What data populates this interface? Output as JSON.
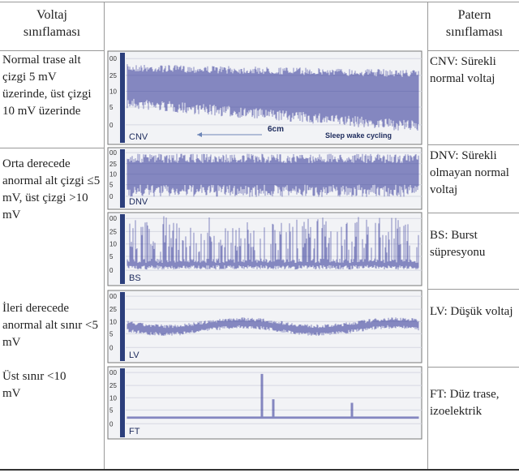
{
  "header": {
    "left": "Voltaj sınıflaması",
    "right": "Patern sınıflaması"
  },
  "voltage_classes": [
    "Normal trase alt çizgi 5 mV üzerinde, üst çizgi 10 mV üzerinde",
    "Orta derecede anormal alt çizgi ≤5 mV, üst çizgi >10 mV",
    "İleri derecede anormal alt sınır <5 mV",
    "Üst sınır <10 mV"
  ],
  "axis_ticks": [
    "00",
    "25",
    "10",
    "5",
    "0"
  ],
  "panels": [
    {
      "label": "CNV",
      "annotations": [
        "6cm",
        "Sleep wake cycling"
      ]
    },
    {
      "label": "DNV"
    },
    {
      "label": "BS"
    },
    {
      "label": "LV"
    },
    {
      "label": "FT"
    }
  ],
  "pattern_classes": [
    "CNV: Sürekli normal voltaj",
    "DNV: Sürekli olmayan normal voltaj",
    "BS: Burst süpresyonu",
    "LV: Düşük voltaj",
    "FT: Düz trase, izoelektrik"
  ]
}
